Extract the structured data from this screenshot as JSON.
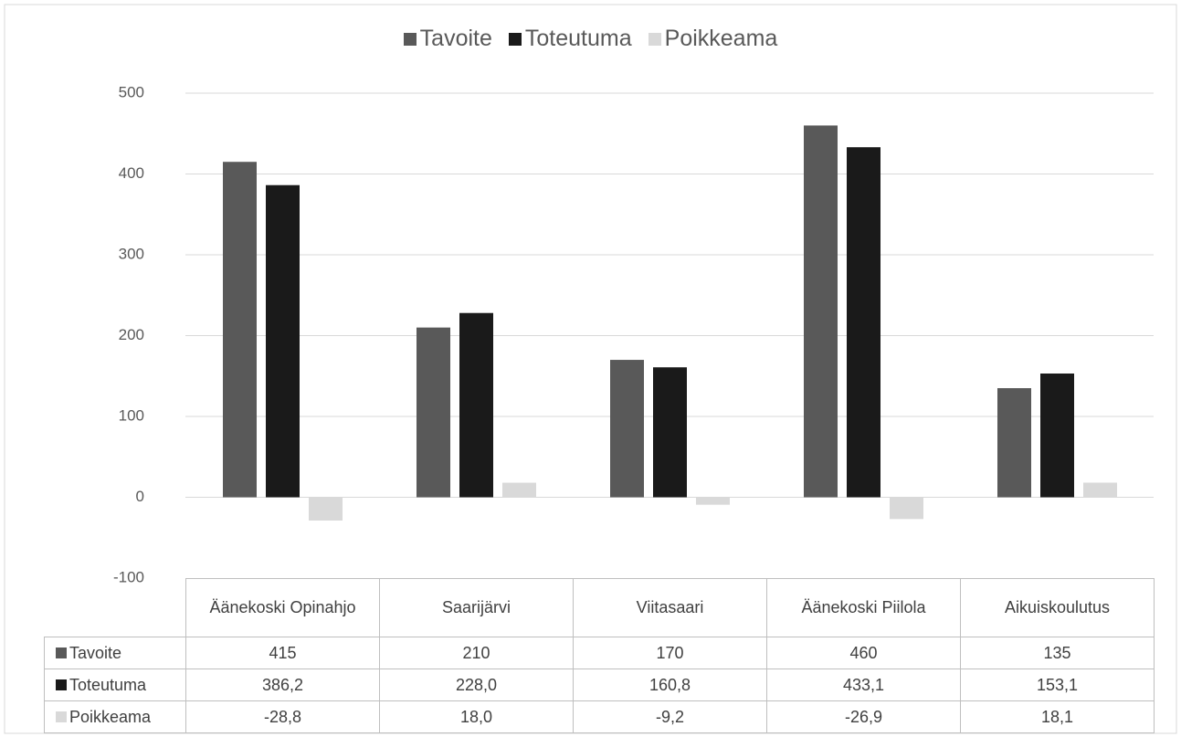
{
  "chart_data": {
    "type": "bar",
    "categories": [
      "Äänekoski Opinahjo",
      "Saarijärvi",
      "Viitasaari",
      "Äänekoski Piilola",
      "Aikuiskoulutus"
    ],
    "series": [
      {
        "name": "Tavoite",
        "color": "#595959",
        "values": [
          415,
          210,
          170,
          460,
          135
        ]
      },
      {
        "name": "Toteutuma",
        "color": "#1a1a1a",
        "values": [
          386.2,
          228.0,
          160.8,
          433.1,
          153.1
        ],
        "value_labels": [
          "386,2",
          "228,0",
          "160,8",
          "433,1",
          "153,1"
        ]
      },
      {
        "name": "Poikkeama",
        "color": "#d9d9d9",
        "values": [
          -28.8,
          18.0,
          -9.2,
          -26.9,
          18.1
        ],
        "value_labels": [
          "-28,8",
          "18,0",
          "-9,2",
          "-26,9",
          "18,1"
        ]
      }
    ],
    "ylim": [
      -100,
      500
    ],
    "yticks": [
      -100,
      0,
      100,
      200,
      300,
      400,
      500
    ],
    "grid": true,
    "legend": "top",
    "data_table": true
  }
}
